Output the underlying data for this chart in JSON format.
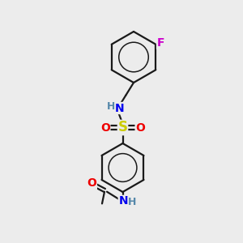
{
  "bg_color": "#ececec",
  "line_color": "#1a1a1a",
  "bond_width": 1.6,
  "atom_colors": {
    "N": "#0000ee",
    "O": "#ee0000",
    "S": "#cccc00",
    "F": "#cc00cc",
    "H": "#5588aa",
    "C": "#1a1a1a"
  },
  "font_size": 10,
  "fig_size": [
    3.0,
    3.0
  ],
  "dpi": 100
}
